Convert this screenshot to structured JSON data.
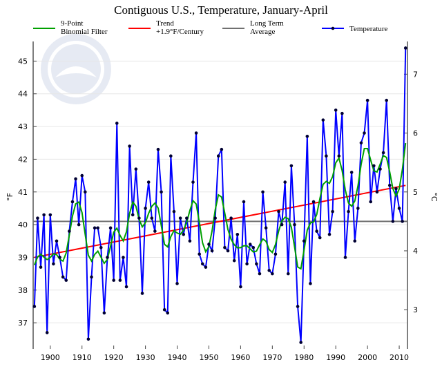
{
  "chart_data": {
    "type": "line",
    "title": "Contiguous U.S., Temperature, January-April",
    "ylabel": "°F",
    "ylabel_right": "°C",
    "xlim": [
      1894.6,
      2012.6
    ],
    "ylim": [
      36.2,
      45.6
    ],
    "x_ticks": [
      1900,
      1910,
      1920,
      1930,
      1940,
      1950,
      1960,
      1970,
      1980,
      1990,
      2000,
      2010
    ],
    "y_ticks": [
      37,
      38,
      39,
      40,
      41,
      42,
      43,
      44,
      45
    ],
    "y_ticks_right": [
      3,
      4,
      5,
      6,
      7
    ],
    "grid": true,
    "legend_placement": "top",
    "legend": [
      {
        "key": "filter",
        "label_lines": [
          "9-Point",
          "Binomial Filter"
        ],
        "color": "#00a000"
      },
      {
        "key": "trend",
        "label_lines": [
          "Trend",
          "+1.9°F/Century"
        ],
        "color": "#ff0000"
      },
      {
        "key": "average",
        "label_lines": [
          "Long Term",
          "Average"
        ],
        "color": "#707070"
      },
      {
        "key": "temperature",
        "label_lines": [
          "Temperature"
        ],
        "color": "#0000ff"
      }
    ],
    "x_start": 1895,
    "temperature": [
      37.5,
      40.2,
      38.7,
      40.3,
      36.7,
      40.3,
      38.8,
      39.5,
      39.0,
      38.4,
      38.3,
      39.8,
      40.7,
      41.4,
      40.0,
      41.5,
      41.0,
      36.5,
      38.4,
      39.9,
      39.9,
      39.3,
      37.3,
      39.0,
      39.9,
      38.3,
      43.1,
      38.3,
      39.0,
      38.1,
      42.4,
      40.3,
      41.7,
      40.2,
      37.9,
      40.5,
      41.3,
      40.2,
      39.8,
      42.3,
      41.0,
      37.4,
      37.3,
      42.1,
      40.4,
      38.2,
      40.2,
      39.7,
      40.2,
      39.5,
      41.3,
      42.8,
      39.1,
      38.8,
      38.7,
      39.4,
      39.2,
      40.2,
      42.1,
      42.3,
      39.3,
      39.2,
      40.2,
      38.9,
      39.7,
      38.1,
      40.7,
      38.8,
      39.4,
      39.3,
      38.8,
      38.5,
      41.0,
      39.9,
      38.6,
      38.5,
      39.1,
      40.4,
      40.0,
      41.3,
      38.5,
      41.8,
      40.0,
      37.5,
      36.4,
      39.5,
      42.7,
      38.2,
      40.7,
      39.8,
      39.6,
      43.2,
      42.1,
      39.7,
      40.4,
      43.5,
      42.1,
      43.4,
      39.0,
      40.4,
      41.6,
      39.5,
      40.5,
      42.5,
      42.8,
      43.8,
      40.7,
      41.8,
      41.0,
      41.7,
      42.2,
      43.8,
      41.2,
      40.1,
      41.1,
      40.5,
      40.1,
      45.4
    ],
    "long_term_average": 40.1,
    "trend": {
      "start": [
        1895,
        39.0
      ],
      "end": [
        2012,
        41.2
      ],
      "rate_per_century": 1.9
    },
    "filter": "9-point binomial",
    "watermark": "NOAA"
  }
}
